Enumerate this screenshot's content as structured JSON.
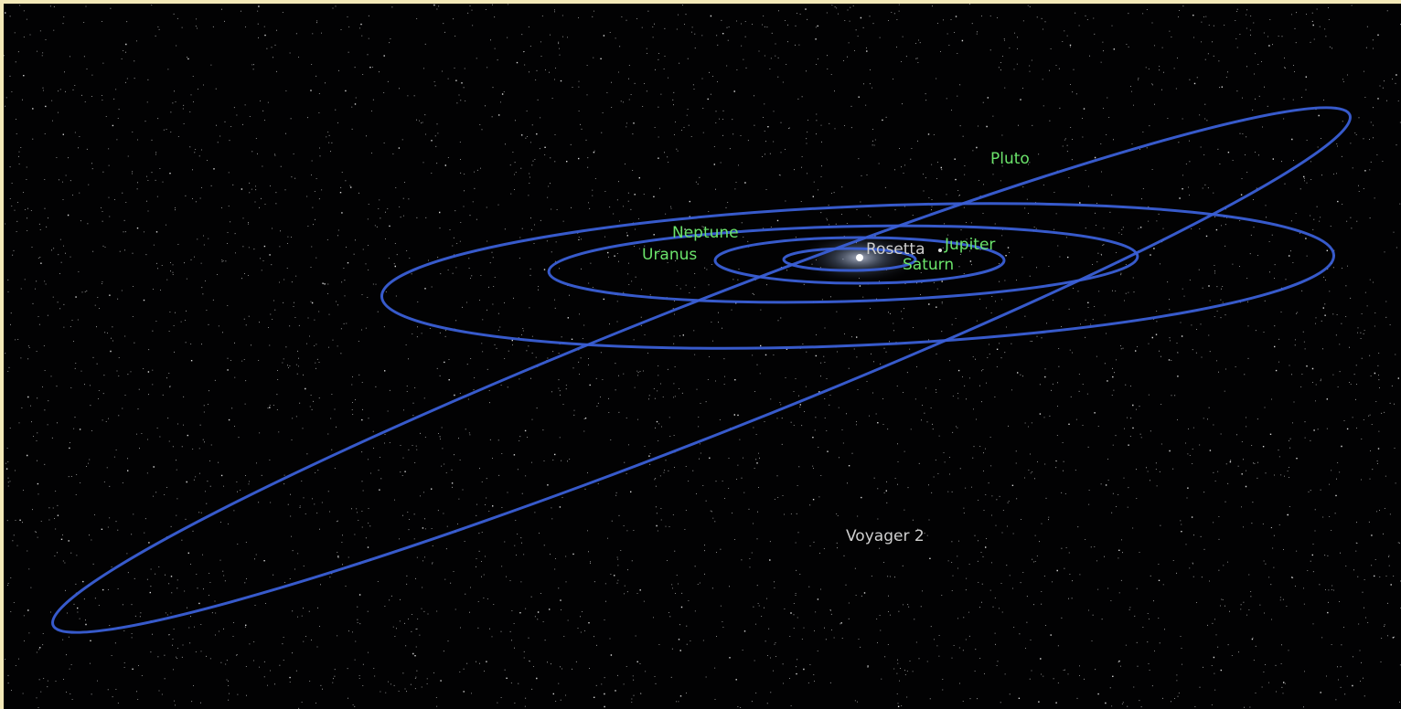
{
  "planets": [
    "Pluto",
    "Neptune",
    "Uranus",
    "Jupiter",
    "Saturn"
  ],
  "spacecraft": [
    "Rosetta",
    "Voyager 2"
  ]
}
